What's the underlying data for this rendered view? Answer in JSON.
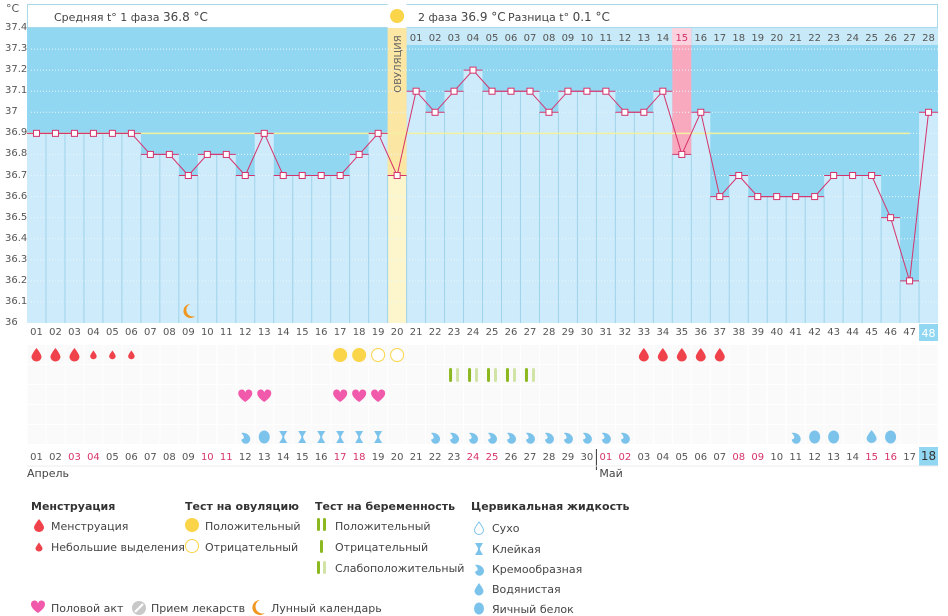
{
  "header": {
    "phase1_label": "Средняя t° 1 фаза",
    "phase1_value": "36.8 °C",
    "phase2_label": "2 фаза",
    "phase2_value": "36.9 °C",
    "diff_label": "Разница t°",
    "diff_value": "0.1 °C",
    "ovulation_label": "ОВУЛЯЦИЯ"
  },
  "colors": {
    "bg_blue": "#92d7f1",
    "bar_light": "#cdebfa",
    "line": "#d6336c",
    "ovulation": "#fbe7a3",
    "highlight_pink": "#f9a9bd",
    "coverline": "#f3f0a0",
    "today": "#92d7f1"
  },
  "chart_data": {
    "type": "line",
    "title": "",
    "ylabel": "°C",
    "ylim": [
      36.0,
      37.4
    ],
    "yticks": [
      "37.4",
      "37.3",
      "37.2",
      "37.1",
      "37",
      "36.9",
      "36.8",
      "36.7",
      "36.6",
      "36.5",
      "36.4",
      "36.3",
      "36.2",
      "36.1",
      "36"
    ],
    "cycle_days": [
      "01",
      "02",
      "03",
      "04",
      "05",
      "06",
      "07",
      "08",
      "09",
      "10",
      "11",
      "12",
      "13",
      "14",
      "15",
      "16",
      "17",
      "18",
      "19",
      "20",
      "21",
      "22",
      "23",
      "24",
      "25",
      "26",
      "27",
      "28",
      "29",
      "30",
      "31",
      "32",
      "33",
      "34",
      "35",
      "36",
      "37",
      "38",
      "39",
      "40",
      "41",
      "42",
      "43",
      "44",
      "45",
      "46",
      "47",
      "48"
    ],
    "top_days": [
      "01",
      "02",
      "03",
      "04",
      "05",
      "06",
      "07",
      "08",
      "09",
      "10",
      "11",
      "12",
      "13",
      "14",
      "15",
      "16",
      "17",
      "18",
      "19",
      "20",
      "21",
      "22",
      "23",
      "24",
      "25",
      "26",
      "27",
      "28"
    ],
    "calendar_dates": [
      "01",
      "02",
      "03",
      "04",
      "05",
      "06",
      "07",
      "08",
      "09",
      "10",
      "11",
      "12",
      "13",
      "14",
      "15",
      "16",
      "17",
      "18",
      "19",
      "20",
      "21",
      "22",
      "23",
      "24",
      "25",
      "26",
      "27",
      "28",
      "29",
      "30",
      "01",
      "02",
      "03",
      "04",
      "05",
      "06",
      "07",
      "08",
      "09",
      "10",
      "11",
      "12",
      "13",
      "14",
      "15",
      "16",
      "17",
      "18"
    ],
    "weekend_dates_idx": [
      2,
      3,
      9,
      10,
      16,
      17,
      23,
      24,
      30,
      31,
      37,
      38,
      44,
      45
    ],
    "months": [
      {
        "label": "Апрель",
        "start_index": 0
      },
      {
        "label": "Май",
        "start_index": 30
      }
    ],
    "series": [
      {
        "name": "Базальная температура",
        "values": [
          36.9,
          36.9,
          36.9,
          36.9,
          36.9,
          36.9,
          36.8,
          36.8,
          36.7,
          36.8,
          36.8,
          36.7,
          36.9,
          36.7,
          36.7,
          36.7,
          36.7,
          36.8,
          36.9,
          36.7,
          37.1,
          37.0,
          37.1,
          37.2,
          37.1,
          37.1,
          37.1,
          37.0,
          37.1,
          37.1,
          37.1,
          37.0,
          37.0,
          37.1,
          36.8,
          37.0,
          36.6,
          36.7,
          36.6,
          36.6,
          36.6,
          36.6,
          36.7,
          36.7,
          36.7,
          36.5,
          36.2,
          37.0
        ]
      }
    ],
    "coverline": 36.9,
    "ovulation_day": 20,
    "highlight_day": 35,
    "today_day": 48,
    "moon_day": 9
  },
  "markers": {
    "menstruation": [
      {
        "day": 1,
        "size": "big"
      },
      {
        "day": 2,
        "size": "big"
      },
      {
        "day": 3,
        "size": "big"
      },
      {
        "day": 4,
        "size": "small"
      },
      {
        "day": 5,
        "size": "small"
      },
      {
        "day": 6,
        "size": "small"
      },
      {
        "day": 33,
        "size": "big"
      },
      {
        "day": 34,
        "size": "big"
      },
      {
        "day": 35,
        "size": "big"
      },
      {
        "day": 36,
        "size": "big"
      },
      {
        "day": 37,
        "size": "big"
      }
    ],
    "ovulation_test": [
      {
        "day": 17,
        "result": "positive"
      },
      {
        "day": 18,
        "result": "positive"
      },
      {
        "day": 19,
        "result": "negative"
      },
      {
        "day": 20,
        "result": "negative"
      }
    ],
    "pregnancy_test": [
      {
        "day": 23,
        "result": "weak"
      },
      {
        "day": 24,
        "result": "weak"
      },
      {
        "day": 25,
        "result": "weak"
      },
      {
        "day": 26,
        "result": "weak"
      },
      {
        "day": 27,
        "result": "weak"
      }
    ],
    "intercourse": [
      12,
      13,
      17,
      18,
      19
    ],
    "cervical": [
      {
        "day": 12,
        "type": "creamy"
      },
      {
        "day": 13,
        "type": "eggwhite"
      },
      {
        "day": 14,
        "type": "sticky"
      },
      {
        "day": 15,
        "type": "sticky"
      },
      {
        "day": 16,
        "type": "sticky"
      },
      {
        "day": 17,
        "type": "sticky"
      },
      {
        "day": 18,
        "type": "sticky"
      },
      {
        "day": 19,
        "type": "sticky"
      },
      {
        "day": 22,
        "type": "creamy"
      },
      {
        "day": 23,
        "type": "creamy"
      },
      {
        "day": 24,
        "type": "creamy"
      },
      {
        "day": 25,
        "type": "creamy"
      },
      {
        "day": 26,
        "type": "creamy"
      },
      {
        "day": 27,
        "type": "creamy"
      },
      {
        "day": 28,
        "type": "creamy"
      },
      {
        "day": 29,
        "type": "creamy"
      },
      {
        "day": 30,
        "type": "creamy"
      },
      {
        "day": 31,
        "type": "creamy"
      },
      {
        "day": 32,
        "type": "creamy"
      },
      {
        "day": 41,
        "type": "creamy"
      },
      {
        "day": 42,
        "type": "eggwhite"
      },
      {
        "day": 43,
        "type": "eggwhite"
      },
      {
        "day": 45,
        "type": "watery"
      },
      {
        "day": 46,
        "type": "eggwhite"
      }
    ]
  },
  "legend": {
    "menstruation": {
      "title": "Менструация",
      "items": [
        "Менструация",
        "Небольшие выделения"
      ]
    },
    "ovulation_test": {
      "title": "Тест на овуляцию",
      "items": [
        "Положительный",
        "Отрицательный"
      ]
    },
    "pregnancy_test": {
      "title": "Тест на беременность",
      "items": [
        "Положительный",
        "Отрицательный",
        "Слабоположительный"
      ]
    },
    "cervical": {
      "title": "Цервикальная жидкость",
      "items": [
        "Сухо",
        "Клейкая",
        "Кремообразная",
        "Водянистая",
        "Яичный белок"
      ]
    },
    "other": [
      "Половой акт",
      "Прием лекарств",
      "Лунный календарь"
    ]
  }
}
